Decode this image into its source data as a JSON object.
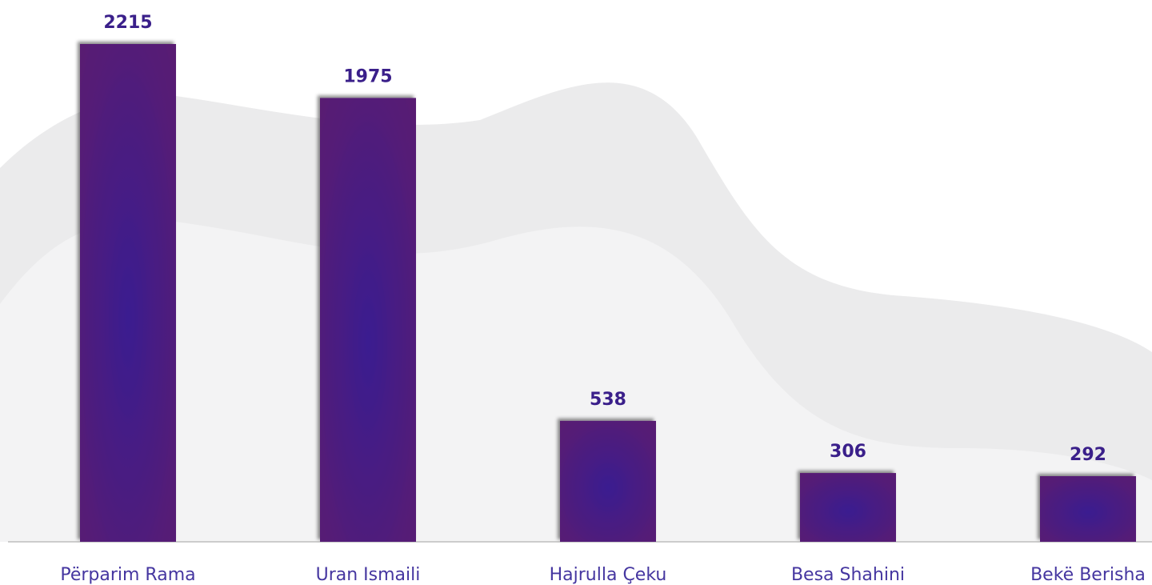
{
  "chart_data": {
    "type": "bar",
    "categories": [
      "Përparim Rama",
      "Uran Ismaili",
      "Hajrulla Çeku",
      "Besa Shahini",
      "Bekë Berisha"
    ],
    "values": [
      2215,
      1975,
      538,
      306,
      292
    ]
  }
}
